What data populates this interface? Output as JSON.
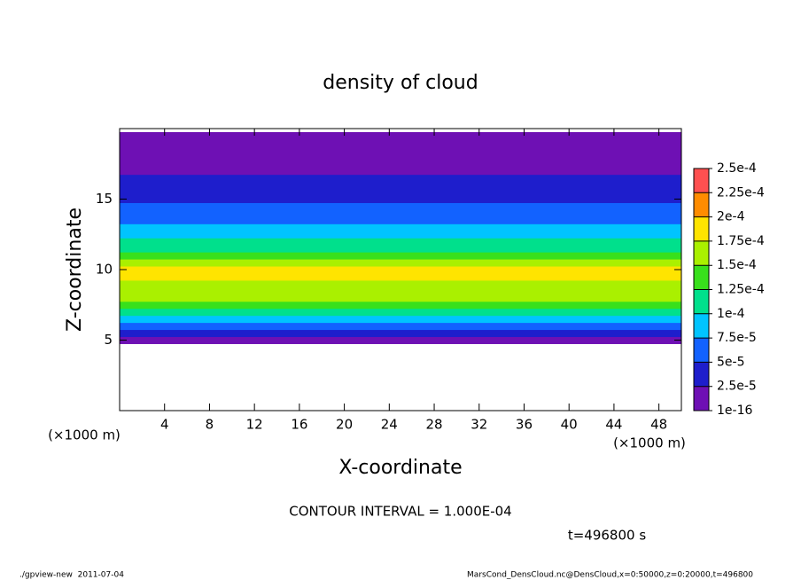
{
  "chart_data": {
    "type": "contour",
    "title": "density of cloud",
    "x_label": "X-coordinate",
    "y_label": "Z-coordinate",
    "x_unit": "(×1000 m)",
    "z_unit": "(×1000 m)",
    "contour_note": "CONTOUR INTERVAL = 1.000E-04",
    "time_note": "t=496800 s",
    "footer_left": "./gpview-new  2011-07-04",
    "footer_right": "MarsCond_DensCloud.nc@DensCloud,x=0:50000,z=0:20000,t=496800",
    "xlim": [
      0,
      50
    ],
    "ylim": [
      0,
      20
    ],
    "xticks": [
      4,
      8,
      12,
      16,
      20,
      24,
      28,
      32,
      36,
      40,
      44,
      48
    ],
    "yticks": [
      5,
      10,
      15
    ],
    "z": [
      5,
      5.5,
      6,
      6.5,
      7,
      7.5,
      8,
      8.5,
      9,
      9.5,
      10,
      10.5,
      11,
      11.5,
      12,
      12.5,
      13,
      13.5,
      14,
      14.5,
      15,
      15.5,
      16,
      16.5,
      17,
      17.5,
      18,
      18.5,
      19,
      19.5
    ],
    "values": [
      1e-05,
      4e-05,
      7e-05,
      9e-05,
      0.00011,
      0.00013,
      0.00015,
      0.00016,
      0.00017,
      0.00018,
      0.000175,
      0.00016,
      0.00014,
      0.00012,
      0.0001,
      9e-05,
      8e-05,
      7e-05,
      6e-05,
      5e-05,
      4.5e-05,
      4e-05,
      3e-05,
      2.5e-05,
      2e-05,
      1.5e-05,
      1e-05,
      8e-06,
      6e-06,
      5e-06
    ],
    "levels": [
      {
        "value": 1e-16,
        "label": "1e-16"
      },
      {
        "value": 2.5e-05,
        "label": "2.5e-5"
      },
      {
        "value": 5e-05,
        "label": "5e-5"
      },
      {
        "value": 7.5e-05,
        "label": "7.5e-5"
      },
      {
        "value": 0.0001,
        "label": "1e-4"
      },
      {
        "value": 0.000125,
        "label": "1.25e-4"
      },
      {
        "value": 0.00015,
        "label": "1.5e-4"
      },
      {
        "value": 0.000175,
        "label": "1.75e-4"
      },
      {
        "value": 0.0002,
        "label": "2e-4"
      },
      {
        "value": 0.000225,
        "label": "2.25e-4"
      },
      {
        "value": 0.00025,
        "label": "2.5e-4"
      }
    ],
    "colors": [
      "#6e10b4",
      "#1e1ecc",
      "#1262ff",
      "#00c4ff",
      "#00e08c",
      "#38e01c",
      "#aaf000",
      "#ffe400",
      "#ff8c00",
      "#ff5050"
    ]
  }
}
